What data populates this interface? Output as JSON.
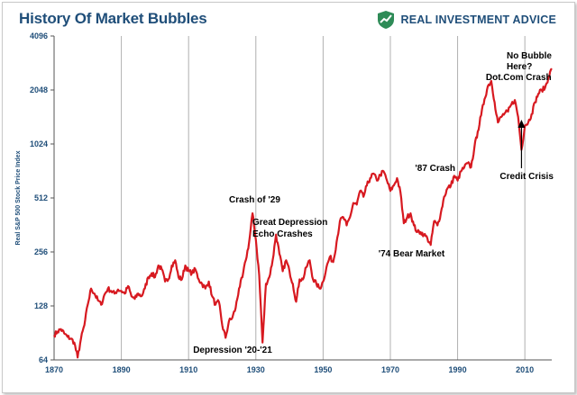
{
  "header": {
    "title": "History Of Market Bubbles",
    "brand": "REAL INVESTMENT ADVICE",
    "brand_icon": "chart-shield-icon",
    "brand_color": "#1f4e79",
    "brand_accent": "#2e8b57"
  },
  "chart_data": {
    "type": "line",
    "title": "History Of Market Bubbles",
    "ylabel": "Real S&P 500 Stock Price Index",
    "xlabel": "",
    "y_scale": "log2",
    "ylim": [
      64,
      4096
    ],
    "xlim": [
      1870,
      2018
    ],
    "x_ticks": [
      "1870",
      "1890",
      "1910",
      "1930",
      "1950",
      "1970",
      "1990",
      "2010"
    ],
    "y_ticks": [
      "64",
      "128",
      "256",
      "512",
      "1024",
      "2048",
      "4096"
    ],
    "grid": "vertical",
    "line_color": "#d71920",
    "series": [
      {
        "x": [
          1870,
          1871,
          1872,
          1873,
          1874,
          1875,
          1876,
          1877,
          1878,
          1879,
          1880,
          1881,
          1882,
          1883,
          1884,
          1885,
          1886,
          1887,
          1888,
          1889,
          1890,
          1891,
          1892,
          1893,
          1894,
          1895,
          1896,
          1897,
          1898,
          1899,
          1900,
          1901,
          1902,
          1903,
          1904,
          1905,
          1906,
          1907,
          1908,
          1909,
          1910,
          1911,
          1912,
          1913,
          1914,
          1915,
          1916,
          1917,
          1918,
          1919,
          1920,
          1921,
          1922,
          1923,
          1924,
          1925,
          1926,
          1927,
          1928,
          1929,
          1930,
          1931,
          1932,
          1933,
          1934,
          1935,
          1936,
          1937,
          1938,
          1939,
          1940,
          1941,
          1942,
          1943,
          1944,
          1945,
          1946,
          1947,
          1948,
          1949,
          1950,
          1951,
          1952,
          1953,
          1954,
          1955,
          1956,
          1957,
          1958,
          1959,
          1960,
          1961,
          1962,
          1963,
          1964,
          1965,
          1966,
          1967,
          1968,
          1969,
          1970,
          1971,
          1972,
          1973,
          1974,
          1975,
          1976,
          1977,
          1978,
          1979,
          1980,
          1981,
          1982,
          1983,
          1984,
          1985,
          1986,
          1987,
          1988,
          1989,
          1990,
          1991,
          1992,
          1993,
          1994,
          1995,
          1996,
          1997,
          1998,
          1999,
          2000,
          2001,
          2002,
          2003,
          2004,
          2005,
          2006,
          2007,
          2008,
          2009,
          2010,
          2011,
          2012,
          2013,
          2014,
          2015,
          2016,
          2017,
          2018
        ],
        "y": [
          88,
          92,
          95,
          90,
          86,
          84,
          80,
          66,
          84,
          100,
          130,
          160,
          150,
          138,
          130,
          148,
          160,
          155,
          150,
          158,
          155,
          150,
          165,
          145,
          140,
          150,
          145,
          160,
          185,
          195,
          185,
          215,
          205,
          175,
          180,
          215,
          230,
          185,
          180,
          215,
          200,
          195,
          205,
          180,
          170,
          160,
          175,
          145,
          130,
          135,
          100,
          85,
          105,
          110,
          125,
          160,
          185,
          230,
          290,
          420,
          300,
          190,
          80,
          170,
          185,
          230,
          320,
          250,
          200,
          230,
          200,
          170,
          135,
          180,
          180,
          210,
          230,
          180,
          170,
          160,
          175,
          210,
          240,
          225,
          290,
          380,
          400,
          360,
          400,
          480,
          470,
          560,
          520,
          600,
          660,
          700,
          640,
          690,
          720,
          640,
          560,
          600,
          660,
          550,
          370,
          400,
          420,
          360,
          330,
          330,
          320,
          305,
          280,
          380,
          360,
          420,
          520,
          580,
          600,
          680,
          640,
          720,
          760,
          800,
          760,
          980,
          1200,
          1480,
          1820,
          2150,
          2300,
          1750,
          1350,
          1450,
          1520,
          1550,
          1700,
          1800,
          1450,
          950,
          1300,
          1350,
          1500,
          1750,
          1950,
          2050,
          2100,
          2400,
          2700
        ]
      }
    ],
    "annotations": [
      {
        "text": "Depression '20-'21",
        "x": 1921,
        "y": 85
      },
      {
        "text": "Crash of '29",
        "x": 1929,
        "y": 420
      },
      {
        "text": "Great Depression",
        "x": 1944,
        "y": 330
      },
      {
        "text": "Echo Crashes",
        "x": 1944,
        "y": 330
      },
      {
        "text": "'74 Bear Market",
        "x": 1982,
        "y": 280
      },
      {
        "text": "'87 Crash",
        "x": 1987,
        "y": 640
      },
      {
        "text": "Dot.Com Crash",
        "x": 2000,
        "y": 2300
      },
      {
        "text": "Credit Crisis",
        "x": 2009,
        "y": 950
      },
      {
        "text": "No Bubble",
        "x": 2018,
        "y": 2700
      },
      {
        "text": "Here?",
        "x": 2018,
        "y": 2700
      }
    ]
  }
}
